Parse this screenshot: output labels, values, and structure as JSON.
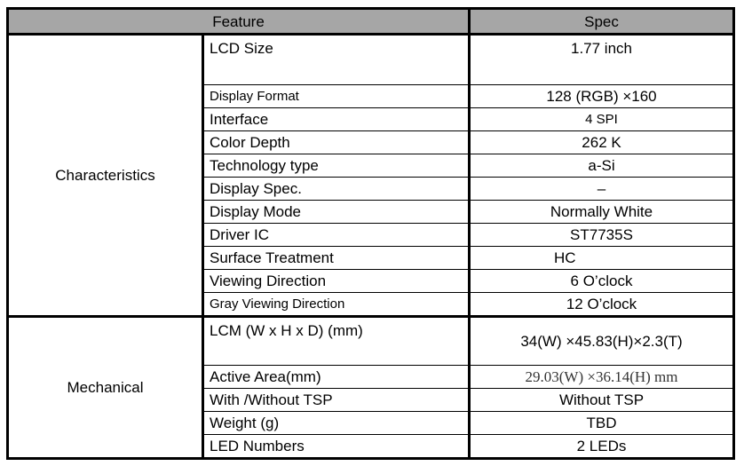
{
  "header": {
    "feature": "Feature",
    "spec": "Spec"
  },
  "groups": [
    {
      "name": "Characteristics",
      "rows": [
        {
          "feature": "LCD Size",
          "spec": "1.77 inch"
        },
        {
          "feature": "Display Format",
          "spec": "128 (RGB) ×160"
        },
        {
          "feature": "Interface",
          "spec": "4 SPI"
        },
        {
          "feature": "Color Depth",
          "spec": "262 K"
        },
        {
          "feature": "Technology type",
          "spec": "a-Si"
        },
        {
          "feature": "Display Spec.",
          "spec": "–"
        },
        {
          "feature": "Display Mode",
          "spec": "Normally White"
        },
        {
          "feature": "Driver IC",
          "spec": "ST7735S"
        },
        {
          "feature": "Surface Treatment",
          "spec": "HC"
        },
        {
          "feature": "Viewing Direction",
          "spec": "6 O’clock"
        },
        {
          "feature": "Gray Viewing Direction",
          "spec": "12 O’clock"
        }
      ]
    },
    {
      "name": "Mechanical",
      "rows": [
        {
          "feature": "LCM (W x H x D) (mm)",
          "spec": "34(W) ×45.83(H)×2.3(T)"
        },
        {
          "feature": "Active Area(mm)",
          "spec": "29.03(W) ×36.14(H) mm"
        },
        {
          "feature": "With /Without TSP",
          "spec": "Without TSP"
        },
        {
          "feature": "Weight (g)",
          "spec": "TBD"
        },
        {
          "feature": "LED Numbers",
          "spec": "2 LEDs"
        }
      ]
    }
  ]
}
